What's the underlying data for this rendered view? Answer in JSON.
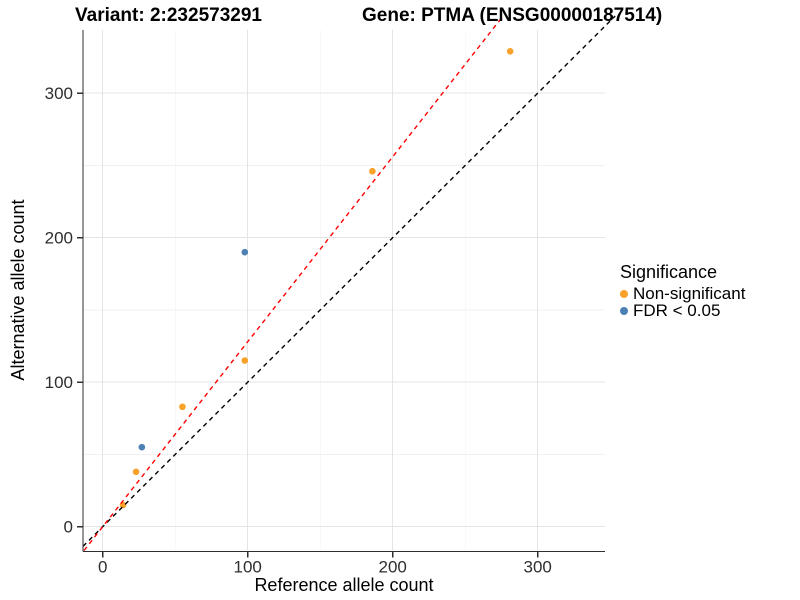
{
  "titles": {
    "variant": "Variant: 2:232573291",
    "gene": "Gene: PTMA (ENSG00000187514)"
  },
  "axes": {
    "x": {
      "label": "Reference allele count",
      "ticks": [
        0,
        100,
        200,
        300
      ],
      "minor_ticks": [
        50,
        150,
        250
      ]
    },
    "y": {
      "label": "Alternative allele count",
      "ticks": [
        0,
        100,
        200,
        300
      ],
      "minor_ticks": [
        50,
        150,
        250
      ]
    }
  },
  "legend": {
    "title": "Significance",
    "items": [
      {
        "label": "Non-significant",
        "color": "#F8A12B"
      },
      {
        "label": "FDR < 0.05",
        "color": "#4D80B3"
      }
    ]
  },
  "chart_data": {
    "type": "scatter",
    "title_left": "Variant: 2:232573291",
    "title_right": "Gene: PTMA (ENSG00000187514)",
    "xlabel": "Reference allele count",
    "ylabel": "Alternative allele count",
    "xlim": [
      -14,
      346
    ],
    "ylim": [
      -16,
      345
    ],
    "grid": "major+minor",
    "legend_position": "right",
    "legend_title": "Significance",
    "series": [
      {
        "name": "Non-significant",
        "color": "#F8A12B",
        "points": [
          {
            "x": 281,
            "y": 329
          },
          {
            "x": 186,
            "y": 246
          },
          {
            "x": 98,
            "y": 115
          },
          {
            "x": 55,
            "y": 83
          },
          {
            "x": 23,
            "y": 38
          },
          {
            "x": 14,
            "y": 15
          }
        ]
      },
      {
        "name": "FDR < 0.05",
        "color": "#4D80B3",
        "points": [
          {
            "x": 98,
            "y": 190
          },
          {
            "x": 27,
            "y": 55
          }
        ]
      }
    ],
    "reference_lines": [
      {
        "name": "identity",
        "slope": 1,
        "intercept": 0,
        "color": "#000000",
        "linetype": "dashed"
      },
      {
        "name": "fit",
        "slope": 1.28,
        "intercept": 0,
        "color": "#FF0000",
        "linetype": "dashed"
      }
    ]
  },
  "style": {
    "grid_major": "#E4E4E4",
    "grid_minor": "#F1F1F1",
    "axis_line": "#2F2F2F",
    "tick_text": "#2E2E2E",
    "point_radius": 3.3
  }
}
